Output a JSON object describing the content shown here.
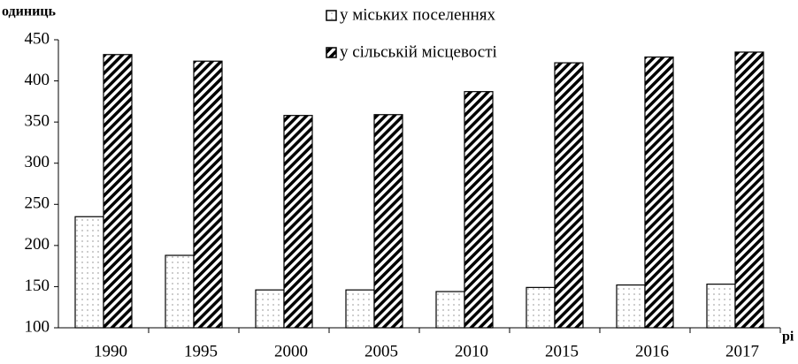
{
  "chart_data": {
    "type": "bar",
    "y_label": "одиниць",
    "x_label": "рі",
    "categories": [
      "1990",
      "1995",
      "2000",
      "2005",
      "2010",
      "2015",
      "2016",
      "2017"
    ],
    "series": [
      {
        "name": "у міських поселеннях",
        "color": "#ffffff",
        "pattern": "dots",
        "values": [
          235,
          188,
          146,
          146,
          144,
          149,
          152,
          153
        ]
      },
      {
        "name": "у сільській місцевості",
        "color": "#000000",
        "pattern": "hatch",
        "values": [
          432,
          424,
          358,
          359,
          387,
          422,
          429,
          435
        ]
      }
    ],
    "ylim": [
      100,
      450
    ],
    "yticks": [
      100,
      150,
      200,
      250,
      300,
      350,
      400,
      450
    ],
    "grid": false,
    "legend": "top"
  }
}
